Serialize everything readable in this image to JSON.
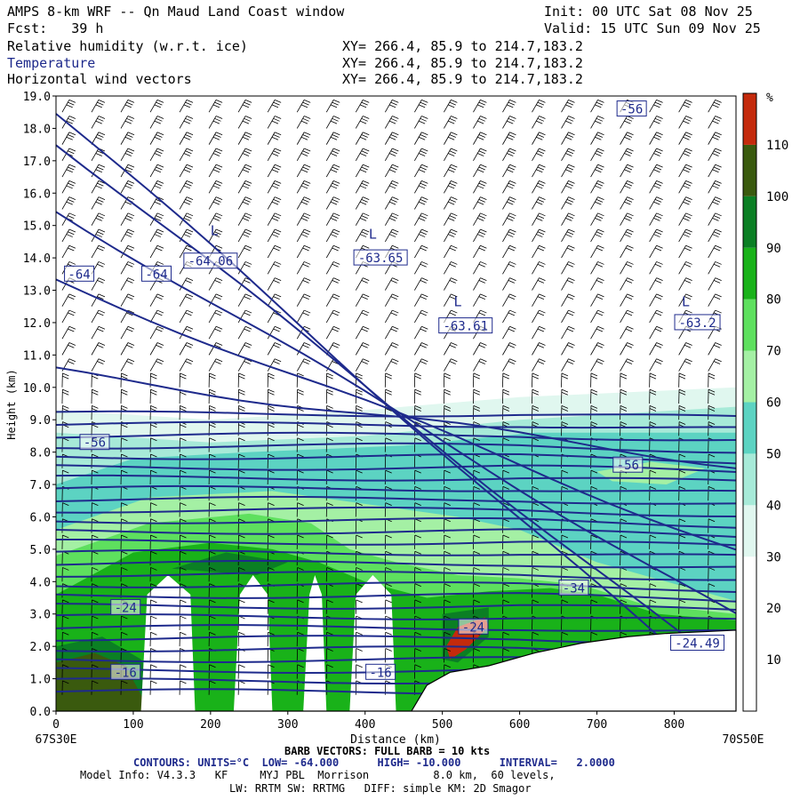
{
  "header": {
    "title": "AMPS 8-km WRF -- Qn Maud Land Coast window",
    "init": "Init: 00 UTC Sat 08 Nov 25",
    "fcst": "Fcst:   39 h",
    "valid": "Valid: 15 UTC Sun 09 Nov 25",
    "fields": [
      {
        "name": "Relative humidity (w.r.t. ice)",
        "xy": "XY= 266.4, 85.9 to 214.7,183.2",
        "color": "#000000"
      },
      {
        "name": "Temperature",
        "xy": "XY= 266.4, 85.9 to 214.7,183.2",
        "color": "#1e2a8c"
      },
      {
        "name": "Horizontal wind vectors",
        "xy": "XY= 266.4, 85.9 to 214.7,183.2",
        "color": "#000000"
      }
    ]
  },
  "footer": {
    "lon_left": "67S30E",
    "lon_right": "70S50E",
    "barb": "BARB VECTORS: FULL BARB = 10 kts",
    "contours": "CONTOURS: UNITS=°C  LOW= -64.000      HIGH= -10.000      INTERVAL=   2.0000",
    "model1": "Model Info: V4.3.3   KF     MYJ PBL  Morrison          8.0 km,  60 levels,",
    "model2": "LW: RRTM SW: RRTMG   DIFF: simple KM: 2D Smagor"
  },
  "chart_data": {
    "type": "heatmap",
    "xlabel": "Distance (km)",
    "ylabel": "Height (km)",
    "xlim": [
      0,
      880
    ],
    "ylim": [
      0,
      19
    ],
    "x_ticks": [
      0,
      100,
      200,
      300,
      400,
      500,
      600,
      700,
      800
    ],
    "y_ticks": [
      "0.0",
      "1.0",
      "2.0",
      "3.0",
      "4.0",
      "5.0",
      "6.0",
      "7.0",
      "8.0",
      "9.0",
      "10.0",
      "11.0",
      "12.0",
      "13.0",
      "14.0",
      "15.0",
      "16.0",
      "17.0",
      "18.0",
      "19.0"
    ],
    "colorbar": {
      "unit": "%",
      "ticks": [
        10,
        20,
        30,
        40,
        50,
        60,
        70,
        80,
        90,
        100,
        110
      ],
      "bins": [
        {
          "from": 0,
          "to": 30,
          "color": "#ffffff"
        },
        {
          "from": 30,
          "to": 40,
          "color": "#e0f7ef"
        },
        {
          "from": 40,
          "to": 50,
          "color": "#a7ead8"
        },
        {
          "from": 50,
          "to": 60,
          "color": "#5cd3c2"
        },
        {
          "from": 60,
          "to": 70,
          "color": "#a4f0a4"
        },
        {
          "from": 70,
          "to": 80,
          "color": "#5ee05e"
        },
        {
          "from": 80,
          "to": 90,
          "color": "#19b219"
        },
        {
          "from": 90,
          "to": 100,
          "color": "#0b7f24"
        },
        {
          "from": 100,
          "to": 110,
          "color": "#3a5a0e"
        },
        {
          "from": 110,
          "to": 120,
          "color": "#c42a0c"
        }
      ]
    },
    "temperature_labels": [
      {
        "text": "-56",
        "x": 745,
        "y": 18.6
      },
      {
        "text": "-64",
        "x": 30,
        "y": 13.5
      },
      {
        "text": "-64",
        "x": 130,
        "y": 13.5
      },
      {
        "text": "-64.06",
        "x": 200,
        "y": 13.9
      },
      {
        "text": "-63.65",
        "x": 420,
        "y": 14.0
      },
      {
        "text": "-63.61",
        "x": 530,
        "y": 11.9
      },
      {
        "text": "-63.2",
        "x": 830,
        "y": 12.0
      },
      {
        "text": "-56",
        "x": 50,
        "y": 8.3
      },
      {
        "text": "-56",
        "x": 740,
        "y": 7.6
      },
      {
        "text": "-34",
        "x": 670,
        "y": 3.8
      },
      {
        "text": "-24",
        "x": 90,
        "y": 3.2
      },
      {
        "text": "-24",
        "x": 540,
        "y": 2.6
      },
      {
        "text": "-24.49",
        "x": 830,
        "y": 2.1
      },
      {
        "text": "-16",
        "x": 90,
        "y": 1.2
      },
      {
        "text": "-16",
        "x": 420,
        "y": 1.2
      }
    ],
    "low_markers": [
      {
        "text": "L",
        "x": 205,
        "y": 14.7
      },
      {
        "text": "L",
        "x": 410,
        "y": 14.6
      },
      {
        "text": "L",
        "x": 520,
        "y": 12.5
      },
      {
        "text": "L",
        "x": 815,
        "y": 12.5
      }
    ],
    "terrain": [
      [
        0,
        0
      ],
      [
        460,
        0
      ],
      [
        480,
        0.8
      ],
      [
        510,
        1.2
      ],
      [
        560,
        1.4
      ],
      [
        620,
        1.8
      ],
      [
        680,
        2.1
      ],
      [
        740,
        2.3
      ],
      [
        790,
        2.4
      ],
      [
        880,
        2.5
      ]
    ]
  }
}
